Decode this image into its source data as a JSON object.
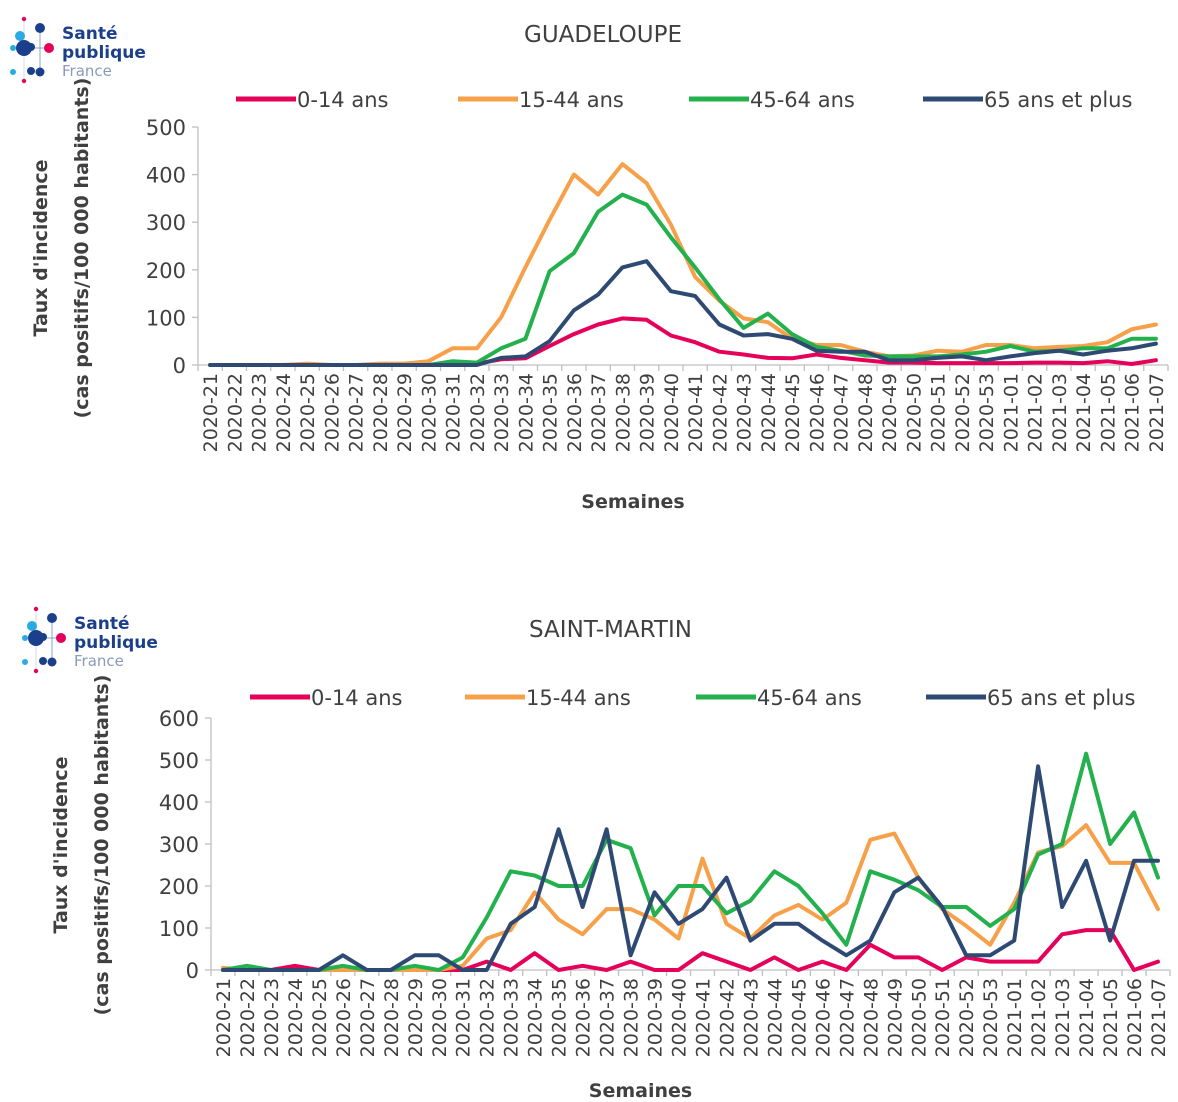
{
  "logo": {
    "line1": "Santé",
    "line2": "publique",
    "line3": "France"
  },
  "colors": {
    "axis": "#bfbfbf",
    "text": "#404040",
    "title": "#404040"
  },
  "chart_data": [
    {
      "type": "line",
      "title": "GUADELOUPE",
      "xlabel": "Semaines",
      "ylabel_line1": "Taux d'incidence",
      "ylabel_line2": "(cas positifs/100 000 habitants)",
      "ylim": [
        0,
        500
      ],
      "yticks": [
        0,
        100,
        200,
        300,
        400,
        500
      ],
      "grid": false,
      "legend": "top",
      "categories": [
        "2020-21",
        "2020-22",
        "2020-23",
        "2020-24",
        "2020-25",
        "2020-26",
        "2020-27",
        "2020-28",
        "2020-29",
        "2020-30",
        "2020-31",
        "2020-32",
        "2020-33",
        "2020-34",
        "2020-35",
        "2020-36",
        "2020-37",
        "2020-38",
        "2020-39",
        "2020-40",
        "2020-41",
        "2020-42",
        "2020-43",
        "2020-44",
        "2020-45",
        "2020-46",
        "2020-47",
        "2020-48",
        "2020-49",
        "2020-50",
        "2020-51",
        "2020-52",
        "2020-53",
        "2021-01",
        "2021-02",
        "2021-03",
        "2021-04",
        "2021-05",
        "2021-06",
        "2021-07"
      ],
      "series": [
        {
          "name": "0-14 ans",
          "color": "#e5005a",
          "values": [
            0,
            0,
            0,
            0,
            0,
            0,
            0,
            0,
            0,
            0,
            2,
            3,
            12,
            14,
            40,
            65,
            85,
            98,
            95,
            62,
            48,
            28,
            22,
            15,
            14,
            22,
            15,
            10,
            5,
            5,
            4,
            4,
            4,
            4,
            5,
            5,
            4,
            8,
            2,
            10
          ]
        },
        {
          "name": "15-44 ans",
          "color": "#f7a04a",
          "values": [
            0,
            0,
            0,
            0,
            3,
            0,
            0,
            3,
            3,
            8,
            35,
            35,
            100,
            205,
            305,
            400,
            358,
            422,
            382,
            295,
            185,
            135,
            98,
            90,
            55,
            42,
            42,
            28,
            18,
            20,
            30,
            28,
            42,
            42,
            35,
            38,
            40,
            48,
            75,
            85
          ]
        },
        {
          "name": "45-64 ans",
          "color": "#23b14d",
          "values": [
            0,
            0,
            0,
            0,
            0,
            0,
            0,
            0,
            0,
            0,
            8,
            5,
            35,
            55,
            197,
            235,
            322,
            358,
            337,
            268,
            205,
            138,
            78,
            108,
            65,
            38,
            30,
            20,
            18,
            18,
            18,
            22,
            28,
            40,
            28,
            30,
            35,
            35,
            55,
            55
          ]
        },
        {
          "name": "65 ans et plus",
          "color": "#2e4a73",
          "values": [
            0,
            0,
            0,
            0,
            0,
            0,
            0,
            0,
            0,
            0,
            0,
            0,
            15,
            18,
            50,
            115,
            148,
            205,
            218,
            155,
            145,
            85,
            62,
            65,
            55,
            30,
            28,
            28,
            10,
            10,
            15,
            18,
            10,
            18,
            25,
            30,
            22,
            30,
            35,
            45
          ]
        }
      ]
    },
    {
      "type": "line",
      "title": "SAINT-MARTIN",
      "xlabel": "Semaines",
      "ylabel_line1": "Taux d'incidence",
      "ylabel_line2": "(cas positifs/100 000 habitants)",
      "ylim": [
        0,
        600
      ],
      "yticks": [
        0,
        100,
        200,
        300,
        400,
        500,
        600
      ],
      "grid": false,
      "legend": "top",
      "categories": [
        "2020-21",
        "2020-22",
        "2020-23",
        "2020-24",
        "2020-25",
        "2020-26",
        "2020-27",
        "2020-28",
        "2020-29",
        "2020-30",
        "2020-31",
        "2020-32",
        "2020-33",
        "2020-34",
        "2020-35",
        "2020-36",
        "2020-37",
        "2020-38",
        "2020-39",
        "2020-40",
        "2020-41",
        "2020-42",
        "2020-43",
        "2020-44",
        "2020-45",
        "2020-46",
        "2020-47",
        "2020-48",
        "2020-49",
        "2020-50",
        "2020-51",
        "2020-52",
        "2020-53",
        "2021-01",
        "2021-02",
        "2021-03",
        "2021-04",
        "2021-05",
        "2021-06",
        "2021-07"
      ],
      "series": [
        {
          "name": "0-14 ans",
          "color": "#e5005a",
          "values": [
            0,
            0,
            0,
            10,
            0,
            0,
            0,
            0,
            0,
            0,
            0,
            20,
            0,
            40,
            0,
            10,
            0,
            20,
            0,
            0,
            40,
            20,
            0,
            30,
            0,
            20,
            0,
            60,
            30,
            30,
            0,
            30,
            20,
            20,
            20,
            85,
            95,
            95,
            0,
            20
          ]
        },
        {
          "name": "15-44 ans",
          "color": "#f7a04a",
          "values": [
            5,
            0,
            0,
            0,
            0,
            0,
            0,
            0,
            0,
            0,
            10,
            75,
            95,
            185,
            120,
            85,
            145,
            145,
            120,
            75,
            265,
            110,
            75,
            130,
            155,
            120,
            160,
            310,
            325,
            220,
            145,
            105,
            60,
            160,
            280,
            295,
            345,
            255,
            255,
            145
          ]
        },
        {
          "name": "45-64 ans",
          "color": "#23b14d",
          "values": [
            0,
            10,
            0,
            0,
            0,
            10,
            0,
            0,
            10,
            0,
            30,
            125,
            235,
            225,
            200,
            200,
            310,
            290,
            130,
            200,
            200,
            135,
            165,
            235,
            200,
            135,
            60,
            235,
            215,
            190,
            150,
            150,
            105,
            145,
            275,
            300,
            515,
            300,
            375,
            220
          ]
        },
        {
          "name": "65 ans et plus",
          "color": "#2e4a73",
          "values": [
            0,
            0,
            0,
            0,
            0,
            35,
            0,
            0,
            35,
            35,
            0,
            0,
            110,
            150,
            335,
            150,
            335,
            35,
            185,
            110,
            145,
            220,
            70,
            110,
            110,
            70,
            35,
            70,
            185,
            220,
            150,
            35,
            35,
            70,
            485,
            150,
            260,
            70,
            260,
            260
          ]
        }
      ]
    }
  ]
}
